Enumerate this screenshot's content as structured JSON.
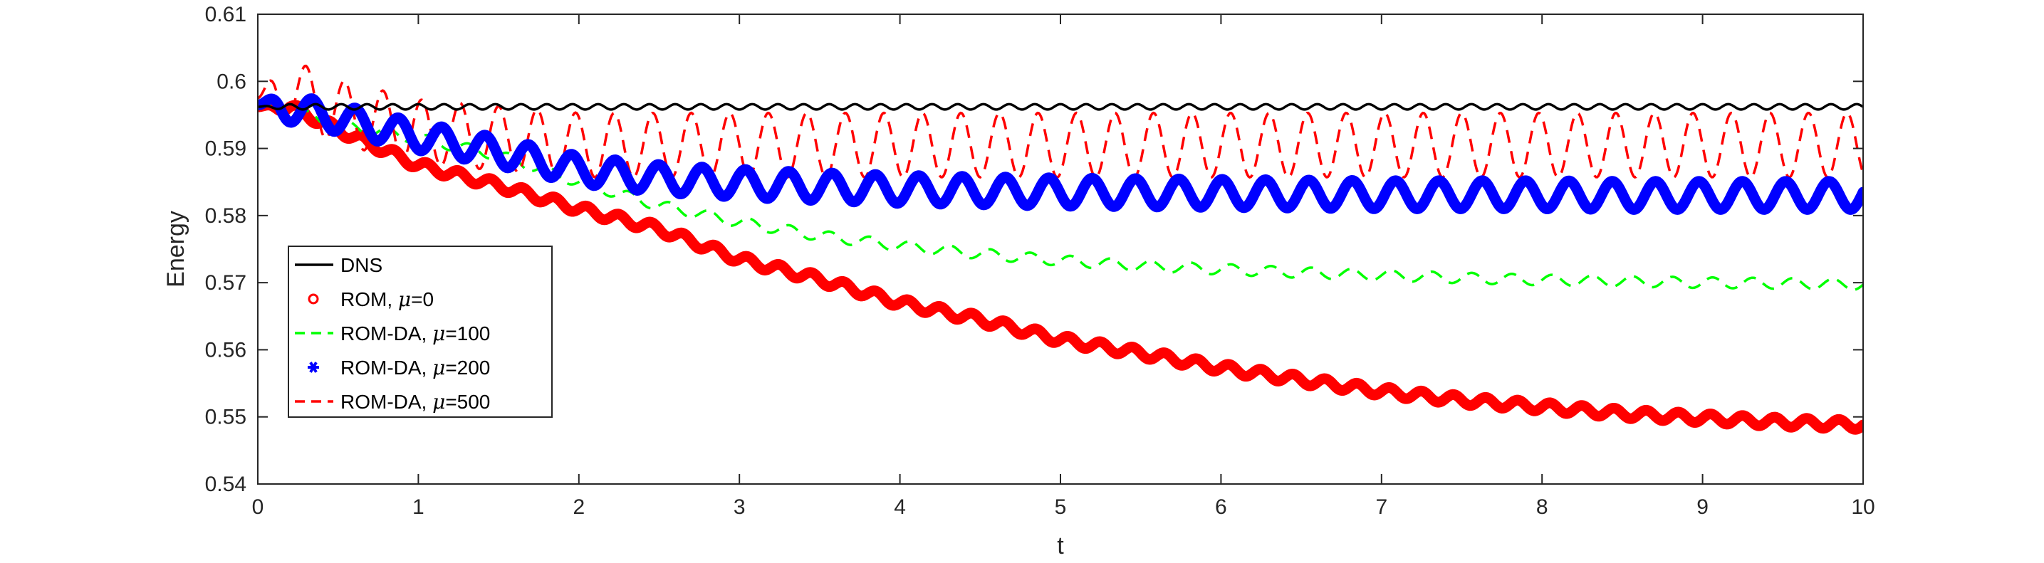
{
  "chart_data": {
    "type": "line",
    "title": "",
    "xlabel": "t",
    "ylabel": "Energy",
    "xlim": [
      0,
      10
    ],
    "ylim": [
      0.54,
      0.61
    ],
    "xticks": [
      0,
      1,
      2,
      3,
      4,
      5,
      6,
      7,
      8,
      9,
      10
    ],
    "yticks": [
      0.54,
      0.55,
      0.56,
      0.57,
      0.58,
      0.59,
      0.6,
      0.61
    ],
    "xtick_labels": [
      "0",
      "1",
      "2",
      "3",
      "4",
      "5",
      "6",
      "7",
      "8",
      "9",
      "10"
    ],
    "ytick_labels": [
      "0.54",
      "0.55",
      "0.56",
      "0.57",
      "0.58",
      "0.59",
      "0.6",
      "0.61"
    ],
    "grid": false,
    "legend_position": "middle-left",
    "series": [
      {
        "label_main": "DNS",
        "label_mu": "",
        "label_value": "",
        "color": "#000000",
        "style": "solid",
        "marker": "none",
        "x": [
          0,
          1,
          2,
          3,
          4,
          5,
          6,
          7,
          8,
          9,
          10
        ],
        "y": [
          0.5962,
          0.5962,
          0.5962,
          0.5962,
          0.5962,
          0.5962,
          0.5962,
          0.5962,
          0.5962,
          0.5962,
          0.5962
        ],
        "osc_amplitude": 0.0004,
        "osc_period": 0.16
      },
      {
        "label_main": "ROM, ",
        "label_mu": "μ",
        "label_value": "=0",
        "color": "#ff0000",
        "style": "markers",
        "marker": "circle",
        "x": [
          0,
          0.2,
          0.5,
          1,
          1.5,
          2,
          2.5,
          3,
          3.5,
          4,
          4.5,
          5,
          5.5,
          6,
          6.5,
          7,
          7.5,
          8,
          8.5,
          9,
          9.5,
          10
        ],
        "y": [
          0.5962,
          0.5962,
          0.5928,
          0.5875,
          0.5845,
          0.581,
          0.578,
          0.5735,
          0.5705,
          0.567,
          0.5645,
          0.5615,
          0.5595,
          0.5573,
          0.5555,
          0.5538,
          0.5525,
          0.5515,
          0.5505,
          0.5498,
          0.5492,
          0.5488
        ],
        "osc_amplitude": 0.0007,
        "osc_period": 0.2
      },
      {
        "label_main": "ROM-DA, ",
        "label_mu": "μ",
        "label_value": "=100",
        "color": "#00ff00",
        "style": "dashed",
        "marker": "none",
        "x": [
          0,
          0.2,
          0.5,
          1,
          1.5,
          2,
          2.5,
          3,
          3.5,
          4,
          4.5,
          5,
          5.5,
          6,
          6.5,
          7,
          7.5,
          8,
          8.5,
          9,
          9.5,
          10
        ],
        "y": [
          0.5962,
          0.5955,
          0.5935,
          0.5915,
          0.589,
          0.585,
          0.5815,
          0.579,
          0.577,
          0.5755,
          0.5743,
          0.5733,
          0.5725,
          0.572,
          0.5715,
          0.5711,
          0.5707,
          0.5704,
          0.5702,
          0.57,
          0.5699,
          0.5697
        ],
        "osc_amplitude": 0.0008,
        "osc_period": 0.25
      },
      {
        "label_main": "ROM-DA, ",
        "label_mu": "μ",
        "label_value": "=200",
        "color": "#0000ff",
        "style": "markers",
        "marker": "asterisk",
        "x": [
          0,
          0.2,
          0.5,
          1,
          1.5,
          2,
          2.5,
          3,
          3.5,
          4,
          4.5,
          5,
          5.5,
          6,
          6.5,
          7,
          7.5,
          8,
          8.5,
          9,
          9.5,
          10
        ],
        "y": [
          0.5965,
          0.596,
          0.5945,
          0.5918,
          0.5895,
          0.5868,
          0.5855,
          0.5848,
          0.5843,
          0.5839,
          0.5837,
          0.5835,
          0.5834,
          0.5833,
          0.5832,
          0.5831,
          0.5831,
          0.5831,
          0.583,
          0.583,
          0.583,
          0.583
        ],
        "osc_amplitude": 0.0021,
        "osc_period": 0.27
      },
      {
        "label_main": "ROM-DA, ",
        "label_mu": "μ",
        "label_value": "=500",
        "color": "#ff0000",
        "style": "dashed",
        "marker": "none",
        "x": [
          0,
          0.2,
          0.5,
          1,
          1.5,
          2,
          2.5,
          3,
          3.5,
          4,
          4.5,
          5,
          5.5,
          6,
          6.5,
          7,
          7.5,
          8,
          8.5,
          9,
          9.5,
          10
        ],
        "y": [
          0.5975,
          0.5985,
          0.5955,
          0.5925,
          0.5915,
          0.5905,
          0.5905,
          0.5905,
          0.5905,
          0.5905,
          0.5905,
          0.5905,
          0.5905,
          0.5905,
          0.5905,
          0.5905,
          0.5905,
          0.5905,
          0.5905,
          0.5905,
          0.5905,
          0.5905
        ],
        "osc_amplitude": 0.0048,
        "osc_period": 0.24
      }
    ]
  }
}
